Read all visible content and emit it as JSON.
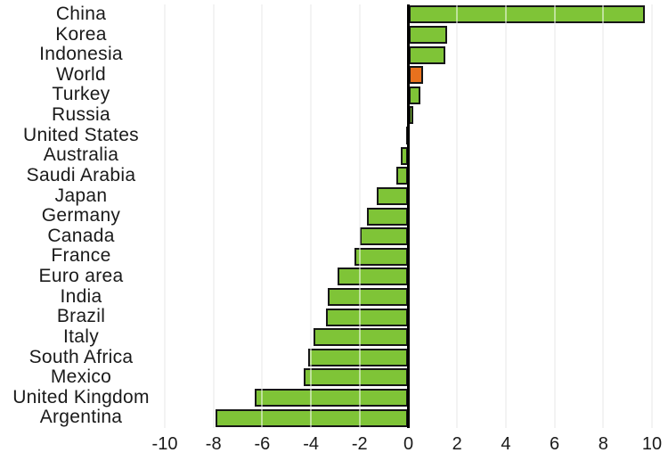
{
  "chart_data": {
    "type": "bar",
    "orientation": "horizontal",
    "title": "",
    "xlabel": "",
    "ylabel": "",
    "categories": [
      "China",
      "Korea",
      "Indonesia",
      "World",
      "Turkey",
      "Russia",
      "United States",
      "Australia",
      "Saudi Arabia",
      "Japan",
      "Germany",
      "Canada",
      "France",
      "Euro area",
      "India",
      "Brazil",
      "Italy",
      "South Africa",
      "Mexico",
      "United Kingdom",
      "Argentina"
    ],
    "values": [
      9.7,
      1.6,
      1.5,
      0.6,
      0.5,
      0.2,
      -0.1,
      -0.3,
      -0.5,
      -1.3,
      -1.7,
      -2.0,
      -2.2,
      -2.9,
      -3.3,
      -3.4,
      -3.9,
      -4.1,
      -4.3,
      -6.3,
      -7.9
    ],
    "highlight_category": "World",
    "x_ticks": [
      -10,
      -8,
      -6,
      -4,
      -2,
      0,
      2,
      4,
      6,
      8,
      10
    ],
    "xlim": [
      -11,
      10.7
    ],
    "grid": true,
    "legend": null,
    "colors": {
      "bar": "#7FC437",
      "highlight": "#E8711E",
      "bar_border": "#161616",
      "gridline": "#E7E7E7",
      "gridline_over_bars": "rgba(255,255,255,0.5)",
      "zero_axis": "#000000",
      "text": "#1A1A1A"
    }
  }
}
